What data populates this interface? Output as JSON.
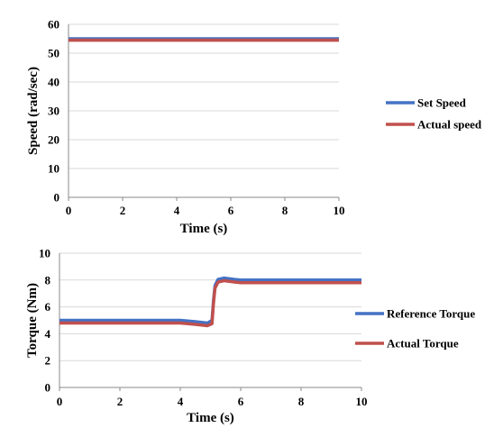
{
  "chart_data": [
    {
      "type": "line",
      "title": "",
      "xlabel": "Time (s)",
      "ylabel": "Speed (rad/sec)",
      "xlim": [
        0,
        10
      ],
      "ylim": [
        0,
        60
      ],
      "xticks": [
        0,
        2,
        4,
        6,
        8,
        10
      ],
      "yticks": [
        0,
        10,
        20,
        30,
        40,
        50,
        60
      ],
      "grid": "horizontal",
      "legend_position": "right",
      "series": [
        {
          "name": "Set Speed",
          "color": "#4472C4",
          "points": [
            [
              0,
              55
            ],
            [
              10,
              55
            ]
          ]
        },
        {
          "name": "Actual speed",
          "color": "#C0504D",
          "points": [
            [
              0,
              54.5
            ],
            [
              10,
              54.5
            ]
          ]
        }
      ]
    },
    {
      "type": "line",
      "title": "",
      "xlabel": "Time (s)",
      "ylabel": "Torque (Nm)",
      "xlim": [
        0,
        10
      ],
      "ylim": [
        0,
        10
      ],
      "xticks": [
        0,
        2,
        4,
        6,
        8,
        10
      ],
      "yticks": [
        0,
        2,
        4,
        6,
        8,
        10
      ],
      "grid": "horizontal",
      "legend_position": "right",
      "series": [
        {
          "name": "Reference Torque",
          "color": "#4472C4",
          "points": [
            [
              0,
              5.0
            ],
            [
              4.0,
              5.0
            ],
            [
              4.5,
              4.9
            ],
            [
              4.9,
              4.8
            ],
            [
              5.05,
              5.0
            ],
            [
              5.1,
              6.5
            ],
            [
              5.15,
              7.6
            ],
            [
              5.25,
              8.05
            ],
            [
              5.45,
              8.15
            ],
            [
              5.8,
              8.05
            ],
            [
              6.0,
              8.0
            ],
            [
              10,
              8.0
            ]
          ]
        },
        {
          "name": "Actual Torque",
          "color": "#C0504D",
          "points": [
            [
              0,
              4.8
            ],
            [
              4.0,
              4.8
            ],
            [
              4.5,
              4.7
            ],
            [
              4.9,
              4.6
            ],
            [
              5.05,
              4.75
            ],
            [
              5.1,
              6.3
            ],
            [
              5.15,
              7.4
            ],
            [
              5.25,
              7.85
            ],
            [
              5.45,
              7.95
            ],
            [
              5.8,
              7.85
            ],
            [
              6.0,
              7.8
            ],
            [
              10,
              7.8
            ]
          ]
        }
      ]
    }
  ]
}
